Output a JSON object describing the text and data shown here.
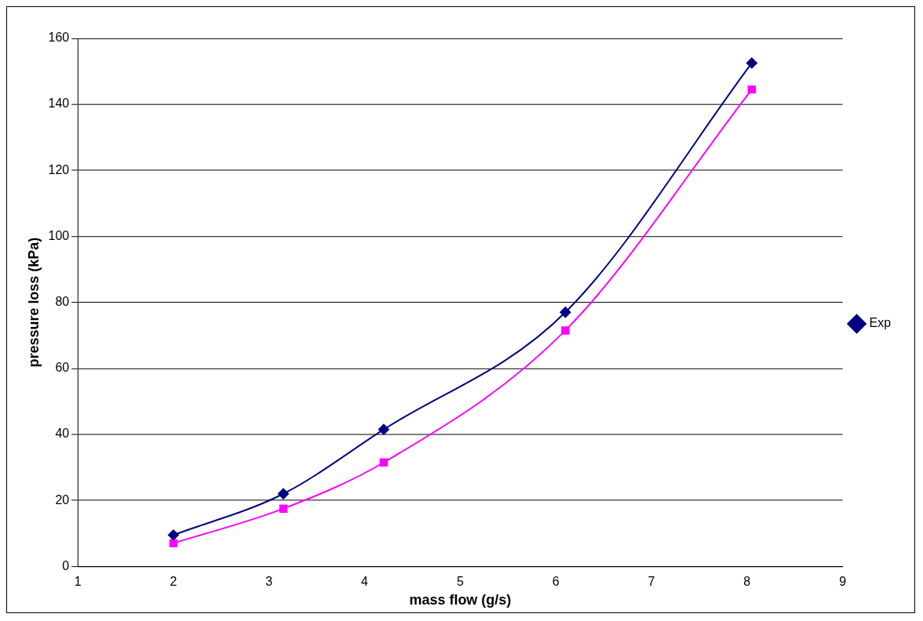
{
  "chart_data": {
    "type": "line",
    "xlabel": "mass flow (g/s)",
    "ylabel": "pressure loss (kPa)",
    "xlim": [
      1,
      9
    ],
    "xticks": [
      1,
      2,
      3,
      4,
      5,
      6,
      7,
      8,
      9
    ],
    "ylim": [
      0,
      160
    ],
    "yticks": [
      0,
      20,
      40,
      60,
      80,
      100,
      120,
      140,
      160
    ],
    "grid": "y",
    "legend": "right",
    "line_style": "solid",
    "series": [
      {
        "name": "Exp",
        "color": "#000080",
        "marker": "diamond",
        "x": [
          2,
          3.15,
          4.2,
          6.1,
          8.05
        ],
        "values": [
          9.5,
          22,
          41.5,
          77,
          152.5
        ]
      },
      {
        "color": "#ff00ff",
        "marker": "square",
        "x": [
          2,
          3.15,
          4.2,
          6.1,
          8.05
        ],
        "values": [
          7,
          17.5,
          31.5,
          71.5,
          144.5
        ]
      }
    ]
  }
}
